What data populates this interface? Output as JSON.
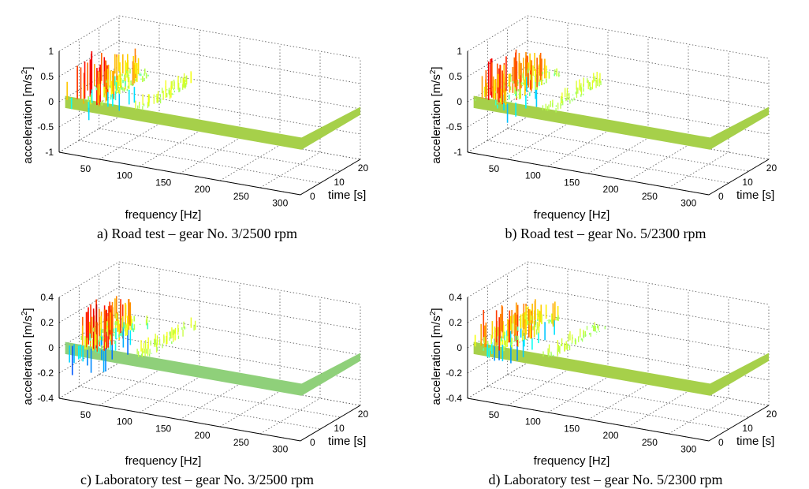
{
  "colors": {
    "baseline": "#a6d04a",
    "background": "#ffffff"
  },
  "chart_data": [
    {
      "type": "surface",
      "caption": "a) Road test – gear No. 3/2500 rpm",
      "xlabel": "frequency [Hz]",
      "ylabel": "time [s]",
      "zlabel": "acceleration [m/s",
      "zlabel_sup": "2",
      "zlabel_end": "]",
      "x_ticks": [
        "50",
        "100",
        "150",
        "200",
        "250",
        "300"
      ],
      "y_ticks": [
        "0",
        "10",
        "20"
      ],
      "z_ticks": [
        "1",
        "0.5",
        "0",
        "-0.5",
        "-1"
      ],
      "xlim": [
        10,
        320
      ],
      "ylim": [
        0,
        25
      ],
      "zlim": [
        -1,
        1
      ],
      "baseline_color": "#a6d04a",
      "peak_region_hz": [
        15,
        60
      ],
      "max_acceleration": 0.95,
      "min_acceleration": -0.45
    },
    {
      "type": "surface",
      "caption": "b) Road test – gear No. 5/2300 rpm",
      "xlabel": "frequency [Hz]",
      "ylabel": "time [s]",
      "zlabel": "acceleration [m/s",
      "zlabel_sup": "2",
      "zlabel_end": "]",
      "x_ticks": [
        "50",
        "100",
        "150",
        "200",
        "250",
        "300"
      ],
      "y_ticks": [
        "0",
        "10",
        "20"
      ],
      "z_ticks": [
        "1",
        "0.5",
        "0",
        "-0.5",
        "-1"
      ],
      "xlim": [
        10,
        320
      ],
      "ylim": [
        0,
        25
      ],
      "zlim": [
        -1,
        1
      ],
      "baseline_color": "#a6d04a",
      "peak_region_hz": [
        15,
        60
      ],
      "max_acceleration": 0.9,
      "min_acceleration": -0.45
    },
    {
      "type": "surface",
      "caption": "c) Laboratory test – gear No. 3/2500 rpm",
      "xlabel": "frequency [Hz]",
      "ylabel": "time [s]",
      "zlabel": "acceleration [m/s",
      "zlabel_sup": "2",
      "zlabel_end": "]",
      "x_ticks": [
        "50",
        "100",
        "150",
        "200",
        "250",
        "300"
      ],
      "y_ticks": [
        "0",
        "10",
        "20"
      ],
      "z_ticks": [
        "0.4",
        "0.2",
        "0",
        "-0.2",
        "-0.4"
      ],
      "xlim": [
        10,
        320
      ],
      "ylim": [
        0,
        25
      ],
      "zlim": [
        -0.4,
        0.4
      ],
      "baseline_color": "#8fd07a",
      "peak_region_hz": [
        15,
        60
      ],
      "max_acceleration": 0.38,
      "min_acceleration": -0.3
    },
    {
      "type": "surface",
      "caption": "d) Laboratory test – gear No. 5/2300 rpm",
      "xlabel": "frequency [Hz]",
      "ylabel": "time [s]",
      "zlabel": "acceleration [m/s",
      "zlabel_sup": "2",
      "zlabel_end": "]",
      "x_ticks": [
        "50",
        "100",
        "150",
        "200",
        "250",
        "300"
      ],
      "y_ticks": [
        "0",
        "10",
        "20"
      ],
      "z_ticks": [
        "0.4",
        "0.2",
        "0",
        "-0.2",
        "-0.4"
      ],
      "xlim": [
        10,
        320
      ],
      "ylim": [
        0,
        25
      ],
      "zlim": [
        -0.4,
        0.4
      ],
      "baseline_color": "#a6d04a",
      "peak_region_hz": [
        15,
        60
      ],
      "max_acceleration": 0.3,
      "min_acceleration": -0.25
    }
  ]
}
